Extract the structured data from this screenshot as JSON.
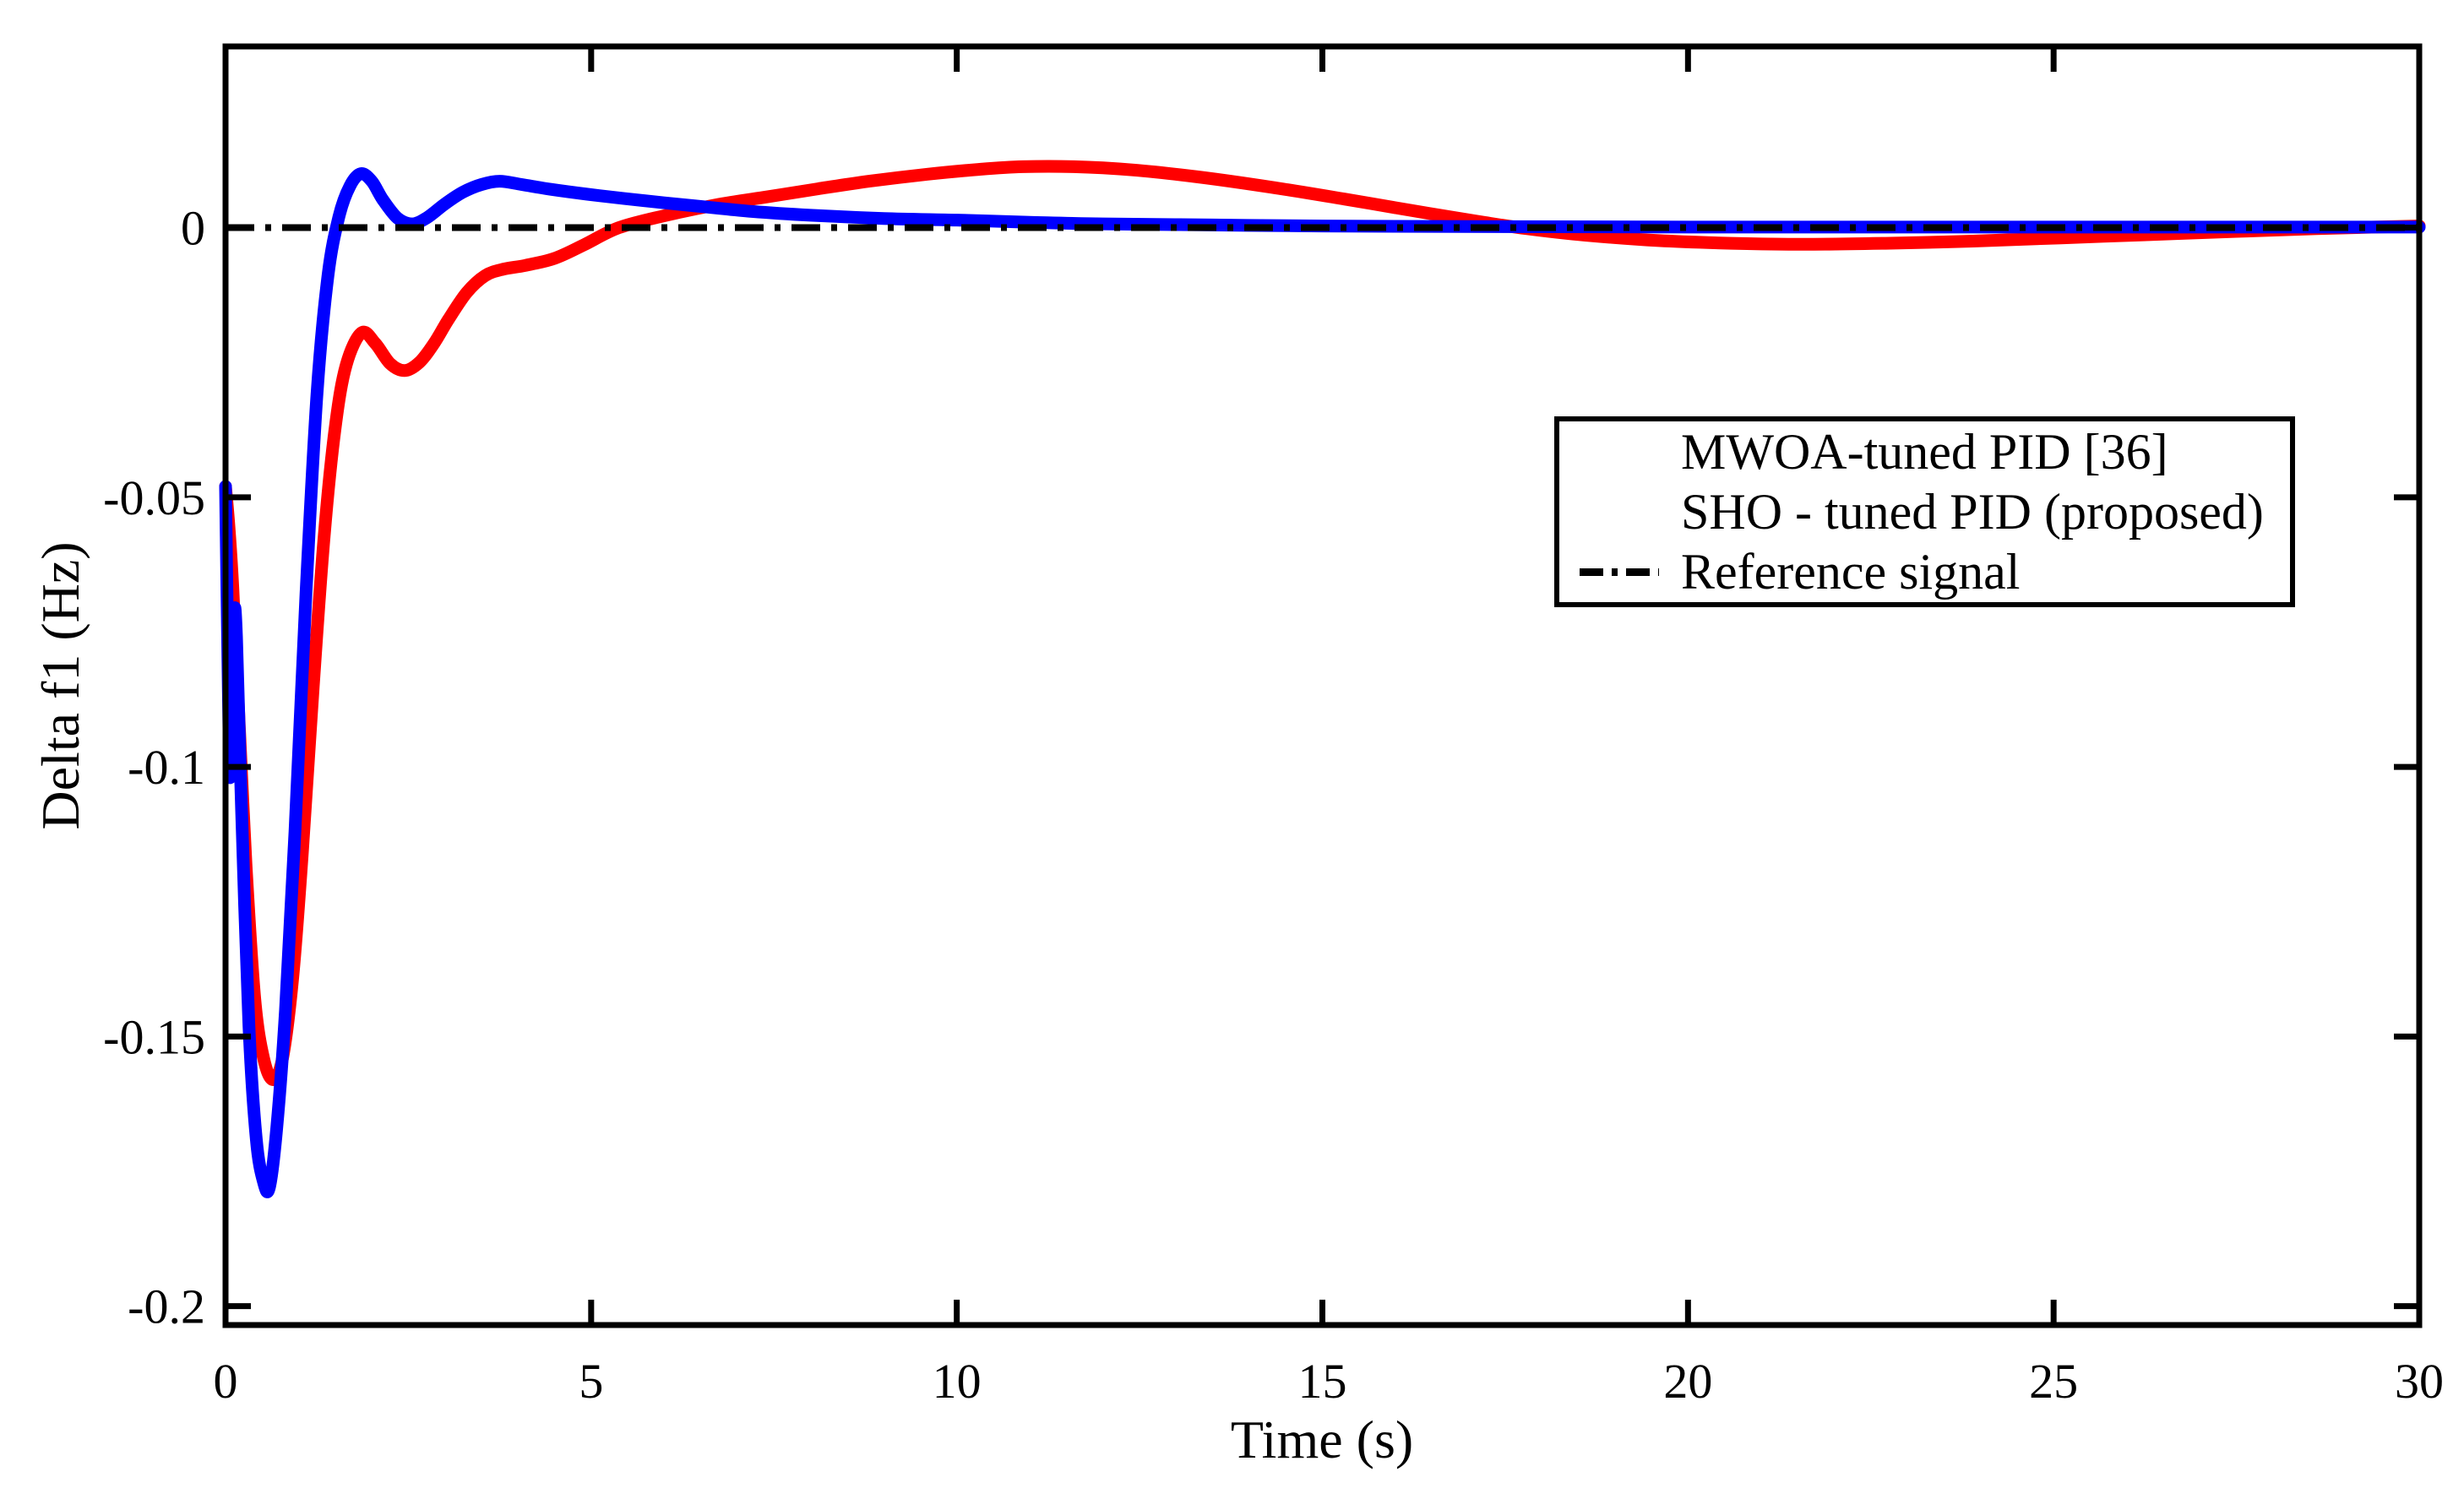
{
  "figure": {
    "background_color": "#ffffff",
    "axis_color": "#000000"
  },
  "chart_data": {
    "type": "line",
    "title": "",
    "xlabel": "Time (s)",
    "ylabel": "Delta f1 (Hz)",
    "xlim": [
      0,
      30
    ],
    "ylim": [
      -0.2035,
      0.0336
    ],
    "grid": false,
    "xticks": {
      "values": [
        0,
        5,
        10,
        15,
        20,
        25,
        30
      ],
      "labels": [
        "0",
        "5",
        "10",
        "15",
        "20",
        "25",
        "30"
      ]
    },
    "yticks": {
      "values": [
        0,
        -0.05,
        -0.1,
        -0.15,
        -0.2
      ],
      "labels": [
        "0",
        "-0.05",
        "-0.1",
        "-0.15",
        "-0.2"
      ]
    },
    "legend": {
      "position": "upper right",
      "border_color": "#000000",
      "background": "#ffffff"
    },
    "series": [
      {
        "name": "MWOA-tuned PID [36]",
        "color": "#ff0000",
        "style": "solid",
        "points": [
          [
            0,
            -0.048
          ],
          [
            0.05,
            -0.056
          ],
          [
            0.1,
            -0.067
          ],
          [
            0.18,
            -0.09
          ],
          [
            0.28,
            -0.118
          ],
          [
            0.4,
            -0.143
          ],
          [
            0.52,
            -0.154
          ],
          [
            0.65,
            -0.158
          ],
          [
            0.78,
            -0.154
          ],
          [
            0.92,
            -0.139
          ],
          [
            1.05,
            -0.116
          ],
          [
            1.2,
            -0.085
          ],
          [
            1.35,
            -0.057
          ],
          [
            1.5,
            -0.037
          ],
          [
            1.65,
            -0.0255
          ],
          [
            1.86,
            -0.0195
          ],
          [
            2.05,
            -0.0215
          ],
          [
            2.25,
            -0.0252
          ],
          [
            2.45,
            -0.0265
          ],
          [
            2.65,
            -0.025
          ],
          [
            2.85,
            -0.0215
          ],
          [
            3.05,
            -0.017
          ],
          [
            3.3,
            -0.012
          ],
          [
            3.55,
            -0.0089
          ],
          [
            3.8,
            -0.0077
          ],
          [
            4.1,
            -0.007
          ],
          [
            4.5,
            -0.0057
          ],
          [
            4.9,
            -0.0032
          ],
          [
            5.38,
            0
          ],
          [
            6.0,
            0.0022
          ],
          [
            6.7,
            0.0042
          ],
          [
            7.4,
            0.0057
          ],
          [
            8.1,
            0.0072
          ],
          [
            8.8,
            0.0086
          ],
          [
            9.6,
            0.0099
          ],
          [
            10.3,
            0.0108
          ],
          [
            10.9,
            0.0113
          ],
          [
            11.6,
            0.0113
          ],
          [
            12.4,
            0.0107
          ],
          [
            13.3,
            0.0094
          ],
          [
            14.3,
            0.0075
          ],
          [
            15.3,
            0.0053
          ],
          [
            16.3,
            0.003
          ],
          [
            17.2,
            0.001
          ],
          [
            17.8,
            -0.0002
          ],
          [
            18.6,
            -0.0014
          ],
          [
            19.6,
            -0.0024
          ],
          [
            20.6,
            -0.0029
          ],
          [
            21.6,
            -0.0031
          ],
          [
            22.7,
            -0.0029
          ],
          [
            23.9,
            -0.0025
          ],
          [
            25.1,
            -0.0019
          ],
          [
            26.3,
            -0.0013
          ],
          [
            27.5,
            -0.0007
          ],
          [
            28.6,
            -0.0002
          ],
          [
            29.4,
            0.0001
          ],
          [
            30,
            0.0003
          ]
        ]
      },
      {
        "name": "SHO - tuned PID (proposed)",
        "color": "#0000ff",
        "style": "solid",
        "points": [
          [
            0,
            -0.048
          ],
          [
            0.02,
            -0.068
          ],
          [
            0.05,
            -0.096
          ],
          [
            0.07,
            -0.101
          ],
          [
            0.1,
            -0.082
          ],
          [
            0.12,
            -0.071
          ],
          [
            0.15,
            -0.076
          ],
          [
            0.22,
            -0.108
          ],
          [
            0.32,
            -0.148
          ],
          [
            0.42,
            -0.169
          ],
          [
            0.52,
            -0.177
          ],
          [
            0.6,
            -0.178
          ],
          [
            0.7,
            -0.167
          ],
          [
            0.82,
            -0.145
          ],
          [
            0.95,
            -0.112
          ],
          [
            1.1,
            -0.068
          ],
          [
            1.25,
            -0.031
          ],
          [
            1.4,
            -0.009
          ],
          [
            1.55,
            0.002
          ],
          [
            1.7,
            0.0077
          ],
          [
            1.85,
            0.01
          ],
          [
            2.0,
            0.0086
          ],
          [
            2.15,
            0.0052
          ],
          [
            2.35,
            0.0018
          ],
          [
            2.55,
            0.0007
          ],
          [
            2.75,
            0.0018
          ],
          [
            3.0,
            0.0044
          ],
          [
            3.25,
            0.0066
          ],
          [
            3.5,
            0.008
          ],
          [
            3.75,
            0.0086
          ],
          [
            4.05,
            0.008
          ],
          [
            4.45,
            0.0071
          ],
          [
            4.95,
            0.0062
          ],
          [
            5.45,
            0.0054
          ],
          [
            6.0,
            0.0046
          ],
          [
            6.6,
            0.0038
          ],
          [
            7.2,
            0.003
          ],
          [
            8.0,
            0.0023
          ],
          [
            9.0,
            0.0017
          ],
          [
            10.0,
            0.0014
          ],
          [
            11.0,
            0.001
          ],
          [
            12.0,
            0.0007
          ],
          [
            13.5,
            0.0005
          ],
          [
            15.0,
            0.0003
          ],
          [
            17.0,
            0.0002
          ],
          [
            20.0,
            0.0001
          ],
          [
            25.0,
            0.0001
          ],
          [
            30,
            0.0001
          ]
        ]
      },
      {
        "name": "Reference signal",
        "color": "#000000",
        "style": "dash-dot",
        "points": [
          [
            0,
            0
          ],
          [
            30,
            0
          ]
        ]
      }
    ]
  }
}
